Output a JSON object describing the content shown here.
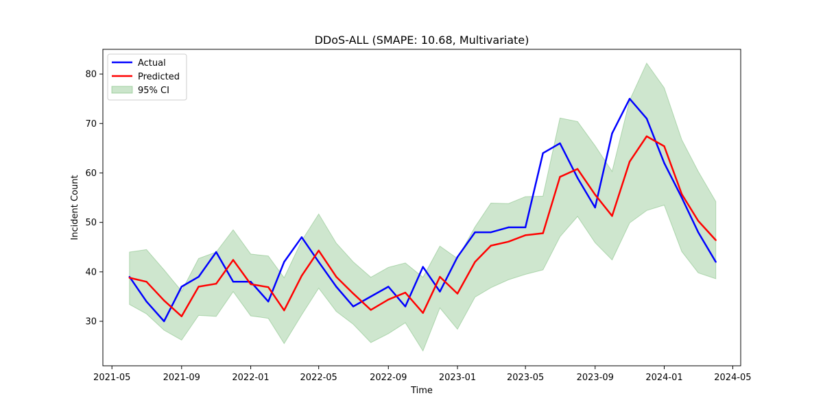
{
  "chart_data": {
    "type": "line",
    "title": "DDoS-ALL (SMAPE: 10.68, Multivariate)",
    "xlabel": "Time",
    "ylabel": "Incident Count",
    "x": [
      "2021-06",
      "2021-07",
      "2021-08",
      "2021-09",
      "2021-10",
      "2021-11",
      "2021-12",
      "2022-01",
      "2022-02",
      "2022-03",
      "2022-04",
      "2022-05",
      "2022-06",
      "2022-07",
      "2022-08",
      "2022-09",
      "2022-10",
      "2022-11",
      "2022-12",
      "2023-01",
      "2023-02",
      "2023-03",
      "2023-04",
      "2023-05",
      "2023-06",
      "2023-07",
      "2023-08",
      "2023-09",
      "2023-10",
      "2023-11",
      "2023-12",
      "2024-01",
      "2024-02",
      "2024-03",
      "2024-04"
    ],
    "x_ticks": [
      "2021-05",
      "2021-09",
      "2022-01",
      "2022-05",
      "2022-09",
      "2023-01",
      "2023-05",
      "2023-09",
      "2024-01",
      "2024-05"
    ],
    "xlim": [
      "2021-04-15",
      "2024-05-15"
    ],
    "ylim": [
      21,
      85
    ],
    "y_ticks": [
      30,
      40,
      50,
      60,
      70,
      80
    ],
    "grid": false,
    "legend_position": "top-left",
    "series": [
      {
        "name": "Actual",
        "color": "#0000ff",
        "values": [
          39,
          34,
          30,
          37,
          39,
          44,
          38,
          38,
          34,
          42,
          47,
          42,
          37,
          33,
          35,
          37,
          33,
          41,
          36,
          43,
          48,
          48,
          49,
          49,
          64,
          66,
          59,
          53,
          68,
          75,
          71,
          62,
          55,
          48,
          42
        ]
      },
      {
        "name": "Predicted",
        "color": "#ff0000",
        "values": [
          38.8,
          38.0,
          34.2,
          31.0,
          37.0,
          37.6,
          42.4,
          37.5,
          36.9,
          32.2,
          39.2,
          44.3,
          39.0,
          35.6,
          32.3,
          34.4,
          35.8,
          31.7,
          39.0,
          35.6,
          42.0,
          45.3,
          46.1,
          47.4,
          47.8,
          59.2,
          60.8,
          55.6,
          51.3,
          62.3,
          67.4,
          65.4,
          55.7,
          50.3,
          46.4
        ]
      }
    ],
    "ci": {
      "name": "95% CI",
      "color": "#6ab46a",
      "lower": [
        33.4,
        31.5,
        28.2,
        26.2,
        31.2,
        31.0,
        36.0,
        31.1,
        30.6,
        25.5,
        31.3,
        36.7,
        32.0,
        29.4,
        25.7,
        27.5,
        29.7,
        24.0,
        32.7,
        28.4,
        34.9,
        36.8,
        38.4,
        39.5,
        40.4,
        47.1,
        51.2,
        45.9,
        42.4,
        49.9,
        52.4,
        53.5,
        44.1,
        39.8,
        38.6
      ],
      "upper": [
        44.0,
        44.5,
        40.4,
        36.1,
        42.7,
        44.0,
        48.5,
        43.6,
        43.2,
        38.8,
        46.3,
        51.7,
        45.8,
        42.0,
        38.9,
        40.9,
        41.8,
        38.9,
        45.2,
        42.7,
        49.1,
        53.9,
        53.8,
        55.2,
        55.3,
        71.1,
        70.4,
        65.5,
        60.3,
        74.7,
        82.2,
        77.2,
        66.7,
        60.3,
        54.2
      ]
    }
  }
}
